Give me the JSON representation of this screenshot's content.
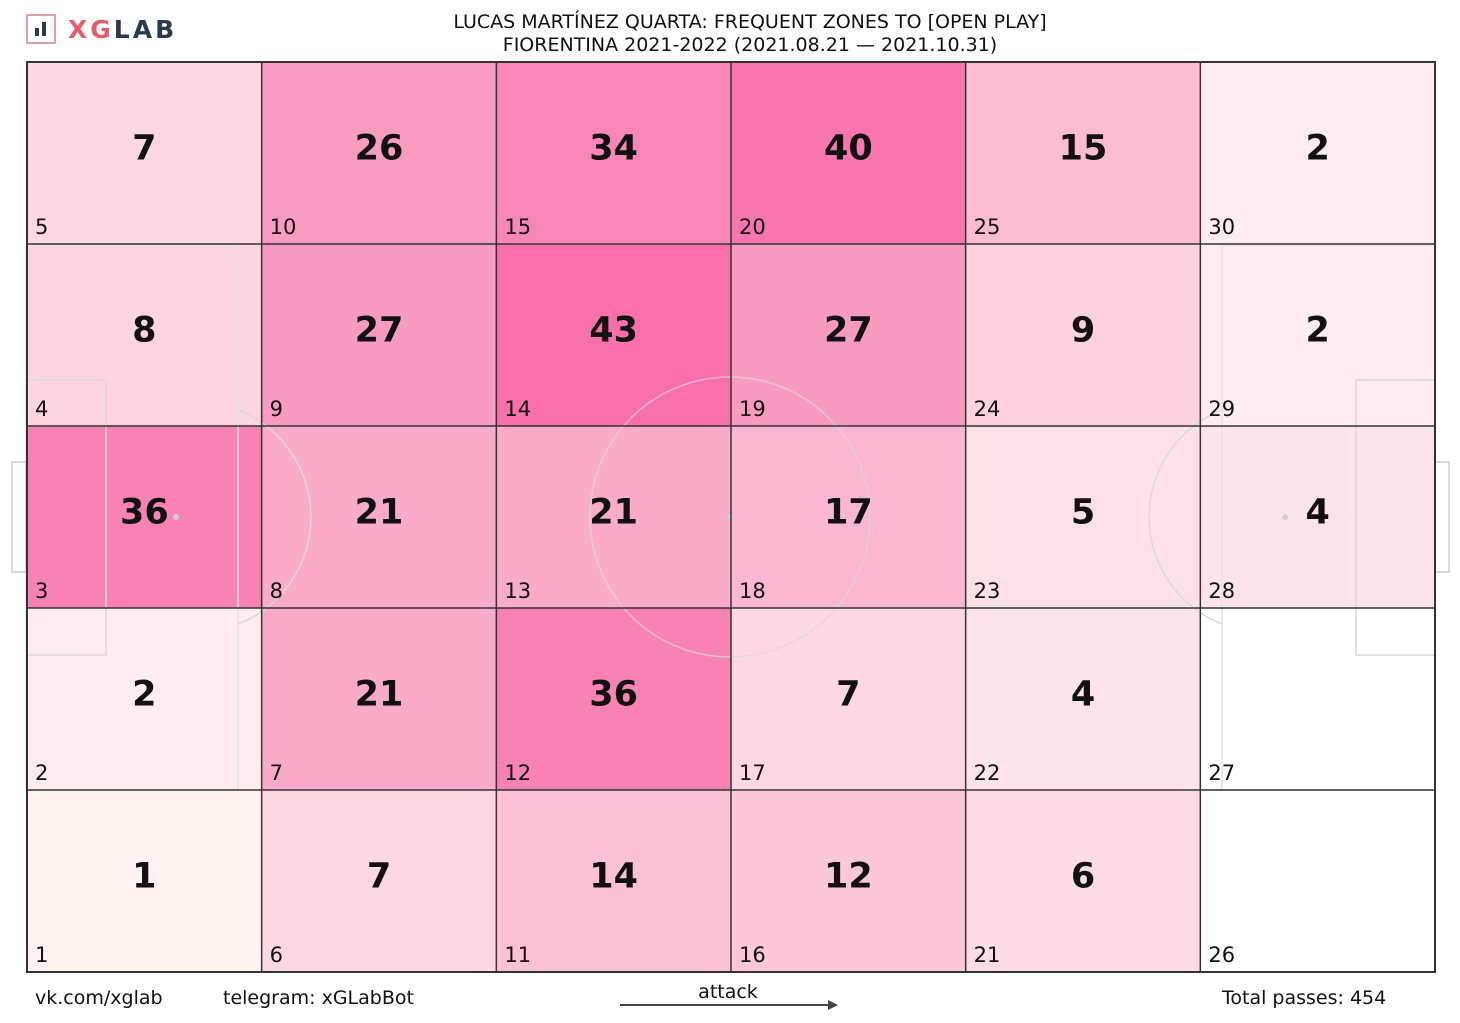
{
  "logo": {
    "xg": "XG",
    "lab": "LAB",
    "colors": {
      "accent": "#e35d6a",
      "dark": "#2b3a4f"
    }
  },
  "header": {
    "title_line1": "LUCAS MARTÍNEZ QUARTA: FREQUENT ZONES TO [OPEN PLAY]",
    "title_line2": "FIORENTINA 2021-2022 (2021.08.21 — 2021.10.31)"
  },
  "footer": {
    "vk": "vk.com/xglab",
    "telegram": "telegram: xGLabBot",
    "attack_label": "attack",
    "total_passes": "Total passes: 454"
  },
  "chart_data": {
    "type": "heatmap",
    "columns": 6,
    "rows": 5,
    "zones": [
      {
        "zone": 5,
        "value": 7
      },
      {
        "zone": 10,
        "value": 26
      },
      {
        "zone": 15,
        "value": 34
      },
      {
        "zone": 20,
        "value": 40
      },
      {
        "zone": 25,
        "value": 15
      },
      {
        "zone": 30,
        "value": 2
      },
      {
        "zone": 4,
        "value": 8
      },
      {
        "zone": 9,
        "value": 27
      },
      {
        "zone": 14,
        "value": 43
      },
      {
        "zone": 19,
        "value": 27
      },
      {
        "zone": 24,
        "value": 9
      },
      {
        "zone": 29,
        "value": 2
      },
      {
        "zone": 3,
        "value": 36
      },
      {
        "zone": 8,
        "value": 21
      },
      {
        "zone": 13,
        "value": 21
      },
      {
        "zone": 18,
        "value": 17
      },
      {
        "zone": 23,
        "value": 5
      },
      {
        "zone": 28,
        "value": 4
      },
      {
        "zone": 2,
        "value": 2
      },
      {
        "zone": 7,
        "value": 21
      },
      {
        "zone": 12,
        "value": 36
      },
      {
        "zone": 17,
        "value": 7
      },
      {
        "zone": 22,
        "value": 4
      },
      {
        "zone": 27,
        "value": null
      },
      {
        "zone": 1,
        "value": 1
      },
      {
        "zone": 6,
        "value": 7
      },
      {
        "zone": 11,
        "value": 14
      },
      {
        "zone": 16,
        "value": 12
      },
      {
        "zone": 21,
        "value": 6
      },
      {
        "zone": 26,
        "value": null
      }
    ],
    "value_max": 43,
    "colors": {
      "low": "#fff8f4",
      "high": "#f764a2",
      "grid": "#333333",
      "pitch_lines": "#d9d9d9"
    }
  }
}
